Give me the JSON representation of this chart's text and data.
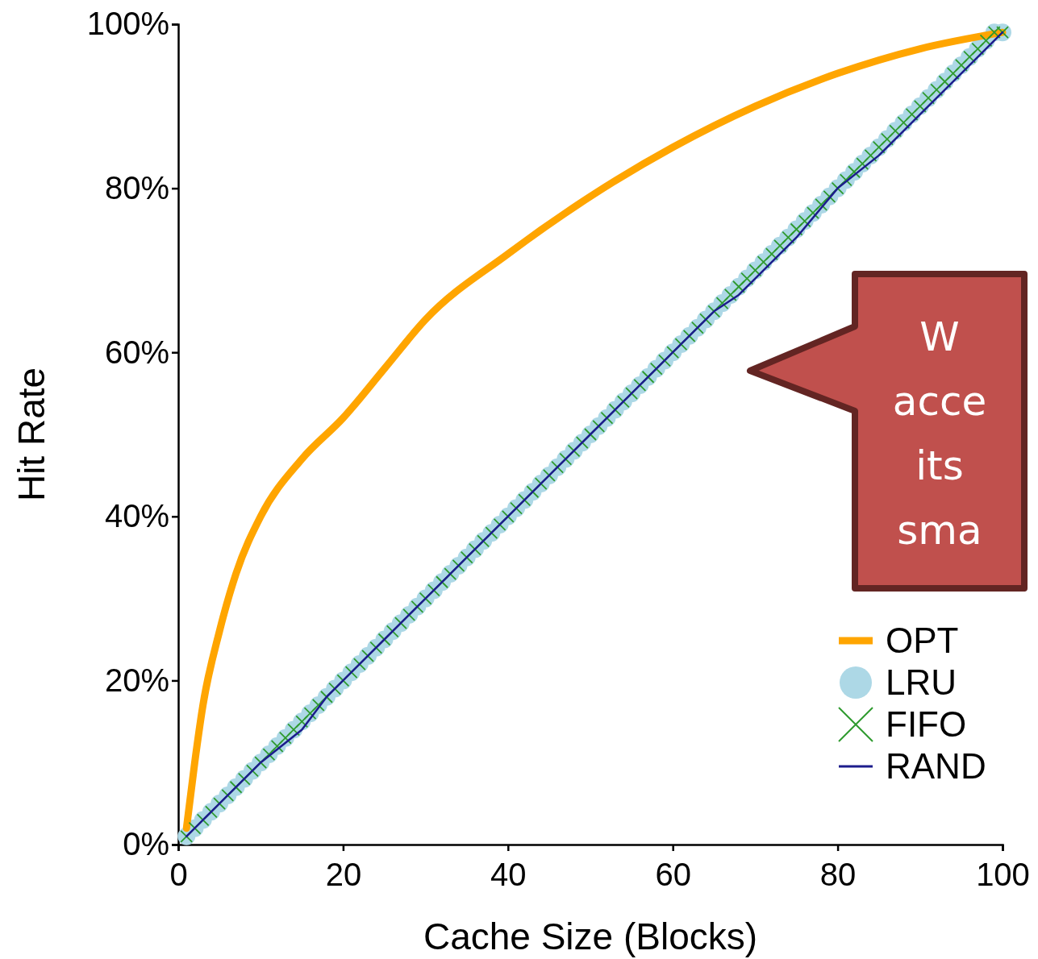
{
  "chart_data": {
    "type": "line",
    "xlabel": "Cache Size (Blocks)",
    "ylabel": "Hit Rate",
    "xlim": [
      0,
      100
    ],
    "xticks": [
      0,
      20,
      40,
      60,
      80,
      100
    ],
    "ylim": [
      0,
      100
    ],
    "yticks": [
      {
        "value": 0,
        "label": "0%"
      },
      {
        "value": 20,
        "label": "20%"
      },
      {
        "value": 40,
        "label": "40%"
      },
      {
        "value": 60,
        "label": "60%"
      },
      {
        "value": 80,
        "label": "80%"
      },
      {
        "value": 100,
        "label": "100%"
      }
    ],
    "legend": "bottom right",
    "grid": false,
    "annotations": [
      "W\nacce\nits\nsma"
    ],
    "series": [
      {
        "name": "OPT",
        "marker": "none",
        "color": "#ffa500",
        "x": [
          1,
          2,
          3,
          5,
          7,
          10,
          15,
          20,
          25,
          30,
          40,
          50,
          60,
          70,
          80,
          90,
          100
        ],
        "values": [
          2,
          10,
          17,
          26,
          33,
          40,
          47,
          52,
          58,
          64,
          72,
          79,
          85,
          90,
          94,
          97,
          99
        ]
      },
      {
        "name": "LRU",
        "type": "scatter",
        "marker": "circle",
        "color": "#add8e6",
        "x": [
          1,
          2,
          3,
          4,
          5,
          6,
          7,
          8,
          9,
          10,
          11,
          12,
          13,
          14,
          15,
          16,
          17,
          18,
          19,
          20,
          21,
          22,
          23,
          24,
          25,
          26,
          27,
          28,
          29,
          30,
          31,
          32,
          33,
          34,
          35,
          36,
          37,
          38,
          39,
          40,
          41,
          42,
          43,
          44,
          45,
          46,
          47,
          48,
          49,
          50,
          51,
          52,
          53,
          54,
          55,
          56,
          57,
          58,
          59,
          60,
          61,
          62,
          63,
          64,
          65,
          66,
          67,
          68,
          69,
          70,
          71,
          72,
          73,
          74,
          75,
          76,
          77,
          78,
          79,
          80,
          81,
          82,
          83,
          84,
          85,
          86,
          87,
          88,
          89,
          90,
          91,
          92,
          93,
          94,
          95,
          96,
          97,
          98,
          99,
          100
        ],
        "values": [
          1,
          2,
          3,
          4,
          5,
          6,
          7,
          8,
          9,
          10,
          11,
          12,
          13,
          14,
          15,
          16,
          17,
          18,
          19,
          20,
          21,
          22,
          23,
          24,
          25,
          26,
          27,
          28,
          29,
          30,
          31,
          32,
          33,
          34,
          35,
          36,
          37,
          38,
          39,
          40,
          41,
          42,
          43,
          44,
          45,
          46,
          47,
          48,
          49,
          50,
          51,
          52,
          53,
          54,
          55,
          56,
          57,
          58,
          59,
          60,
          61,
          62,
          63,
          64,
          65,
          66,
          67,
          68,
          69,
          70,
          71,
          72,
          73,
          74,
          75,
          76,
          77,
          78,
          79,
          80,
          81,
          82,
          83,
          84,
          85,
          86,
          87,
          88,
          89,
          90,
          91,
          92,
          93,
          94,
          95,
          96,
          97,
          98,
          99,
          99
        ]
      },
      {
        "name": "FIFO",
        "type": "scatter",
        "marker": "cross",
        "color": "#2e9a2e",
        "x": [
          1,
          2,
          3,
          4,
          5,
          6,
          7,
          8,
          9,
          10,
          11,
          12,
          13,
          14,
          15,
          16,
          17,
          18,
          19,
          20,
          21,
          22,
          23,
          24,
          25,
          26,
          27,
          28,
          29,
          30,
          31,
          32,
          33,
          34,
          35,
          36,
          37,
          38,
          39,
          40,
          41,
          42,
          43,
          44,
          45,
          46,
          47,
          48,
          49,
          50,
          51,
          52,
          53,
          54,
          55,
          56,
          57,
          58,
          59,
          60,
          61,
          62,
          63,
          64,
          65,
          66,
          67,
          68,
          69,
          70,
          71,
          72,
          73,
          74,
          75,
          76,
          77,
          78,
          79,
          80,
          81,
          82,
          83,
          84,
          85,
          86,
          87,
          88,
          89,
          90,
          91,
          92,
          93,
          94,
          95,
          96,
          97,
          98,
          99,
          100
        ],
        "values": [
          1,
          2,
          3,
          4,
          5,
          6,
          7,
          8,
          9,
          10,
          11,
          12,
          13,
          14,
          15,
          16,
          17,
          18,
          19,
          20,
          21,
          22,
          23,
          24,
          25,
          26,
          27,
          28,
          29,
          30,
          31,
          32,
          33,
          34,
          35,
          36,
          37,
          38,
          39,
          40,
          41,
          42,
          43,
          44,
          45,
          46,
          47,
          48,
          49,
          50,
          51,
          52,
          53,
          54,
          55,
          56,
          57,
          58,
          59,
          60,
          61,
          62,
          63,
          64,
          65,
          66,
          67,
          68,
          69,
          70,
          71,
          72,
          73,
          74,
          75,
          76,
          77,
          78,
          79,
          80,
          81,
          82,
          83,
          84,
          85,
          86,
          87,
          88,
          89,
          90,
          91,
          92,
          93,
          94,
          95,
          96,
          97,
          98,
          99,
          99
        ]
      },
      {
        "name": "RAND",
        "marker": "none",
        "color": "#1c1c8c",
        "x": [
          1,
          5,
          10,
          15,
          18,
          20,
          25,
          30,
          33,
          35,
          40,
          45,
          50,
          55,
          60,
          65,
          68,
          70,
          75,
          80,
          85,
          88,
          90,
          95,
          100
        ],
        "values": [
          1,
          5,
          10,
          14,
          18,
          20,
          25,
          30,
          33,
          35,
          40,
          45,
          50,
          55,
          60,
          65,
          67,
          69,
          74,
          80,
          84,
          87,
          89,
          94,
          99
        ]
      }
    ]
  }
}
